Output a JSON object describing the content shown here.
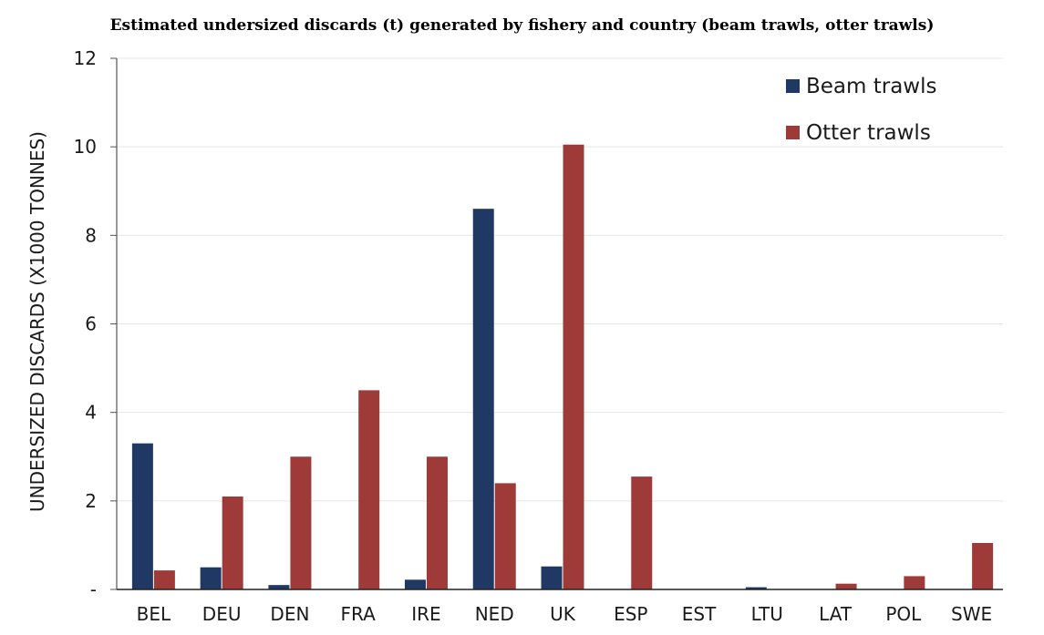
{
  "chart_data": {
    "type": "bar",
    "title": "Estimated undersized discards (t) generated by fishery and country (beam trawls, otter trawls)",
    "ylabel": "UNDERSIZED DISCARDS (X1000 TONNES)",
    "xlabel": "",
    "ylim": [
      0,
      12
    ],
    "yticks": [
      {
        "value": 0,
        "label": "-"
      },
      {
        "value": 2,
        "label": "2"
      },
      {
        "value": 4,
        "label": "4"
      },
      {
        "value": 6,
        "label": "6"
      },
      {
        "value": 8,
        "label": "8"
      },
      {
        "value": 10,
        "label": "10"
      },
      {
        "value": 12,
        "label": "12"
      }
    ],
    "grid": true,
    "legend_position": "top-right",
    "categories": [
      "BEL",
      "DEU",
      "DEN",
      "FRA",
      "IRE",
      "NED",
      "UK",
      "ESP",
      "EST",
      "LTU",
      "LAT",
      "POL",
      "SWE"
    ],
    "series": [
      {
        "name": "Beam trawls",
        "color": "#1f3864",
        "values": [
          3.3,
          0.5,
          0.1,
          0,
          0.22,
          8.6,
          0.52,
          0,
          0,
          0.05,
          0,
          0,
          0
        ]
      },
      {
        "name": "Otter trawls",
        "color": "#9e3a37",
        "values": [
          0.43,
          2.1,
          3.0,
          4.5,
          3.0,
          2.4,
          10.05,
          2.55,
          0,
          0,
          0.13,
          0.3,
          1.05
        ]
      }
    ]
  }
}
